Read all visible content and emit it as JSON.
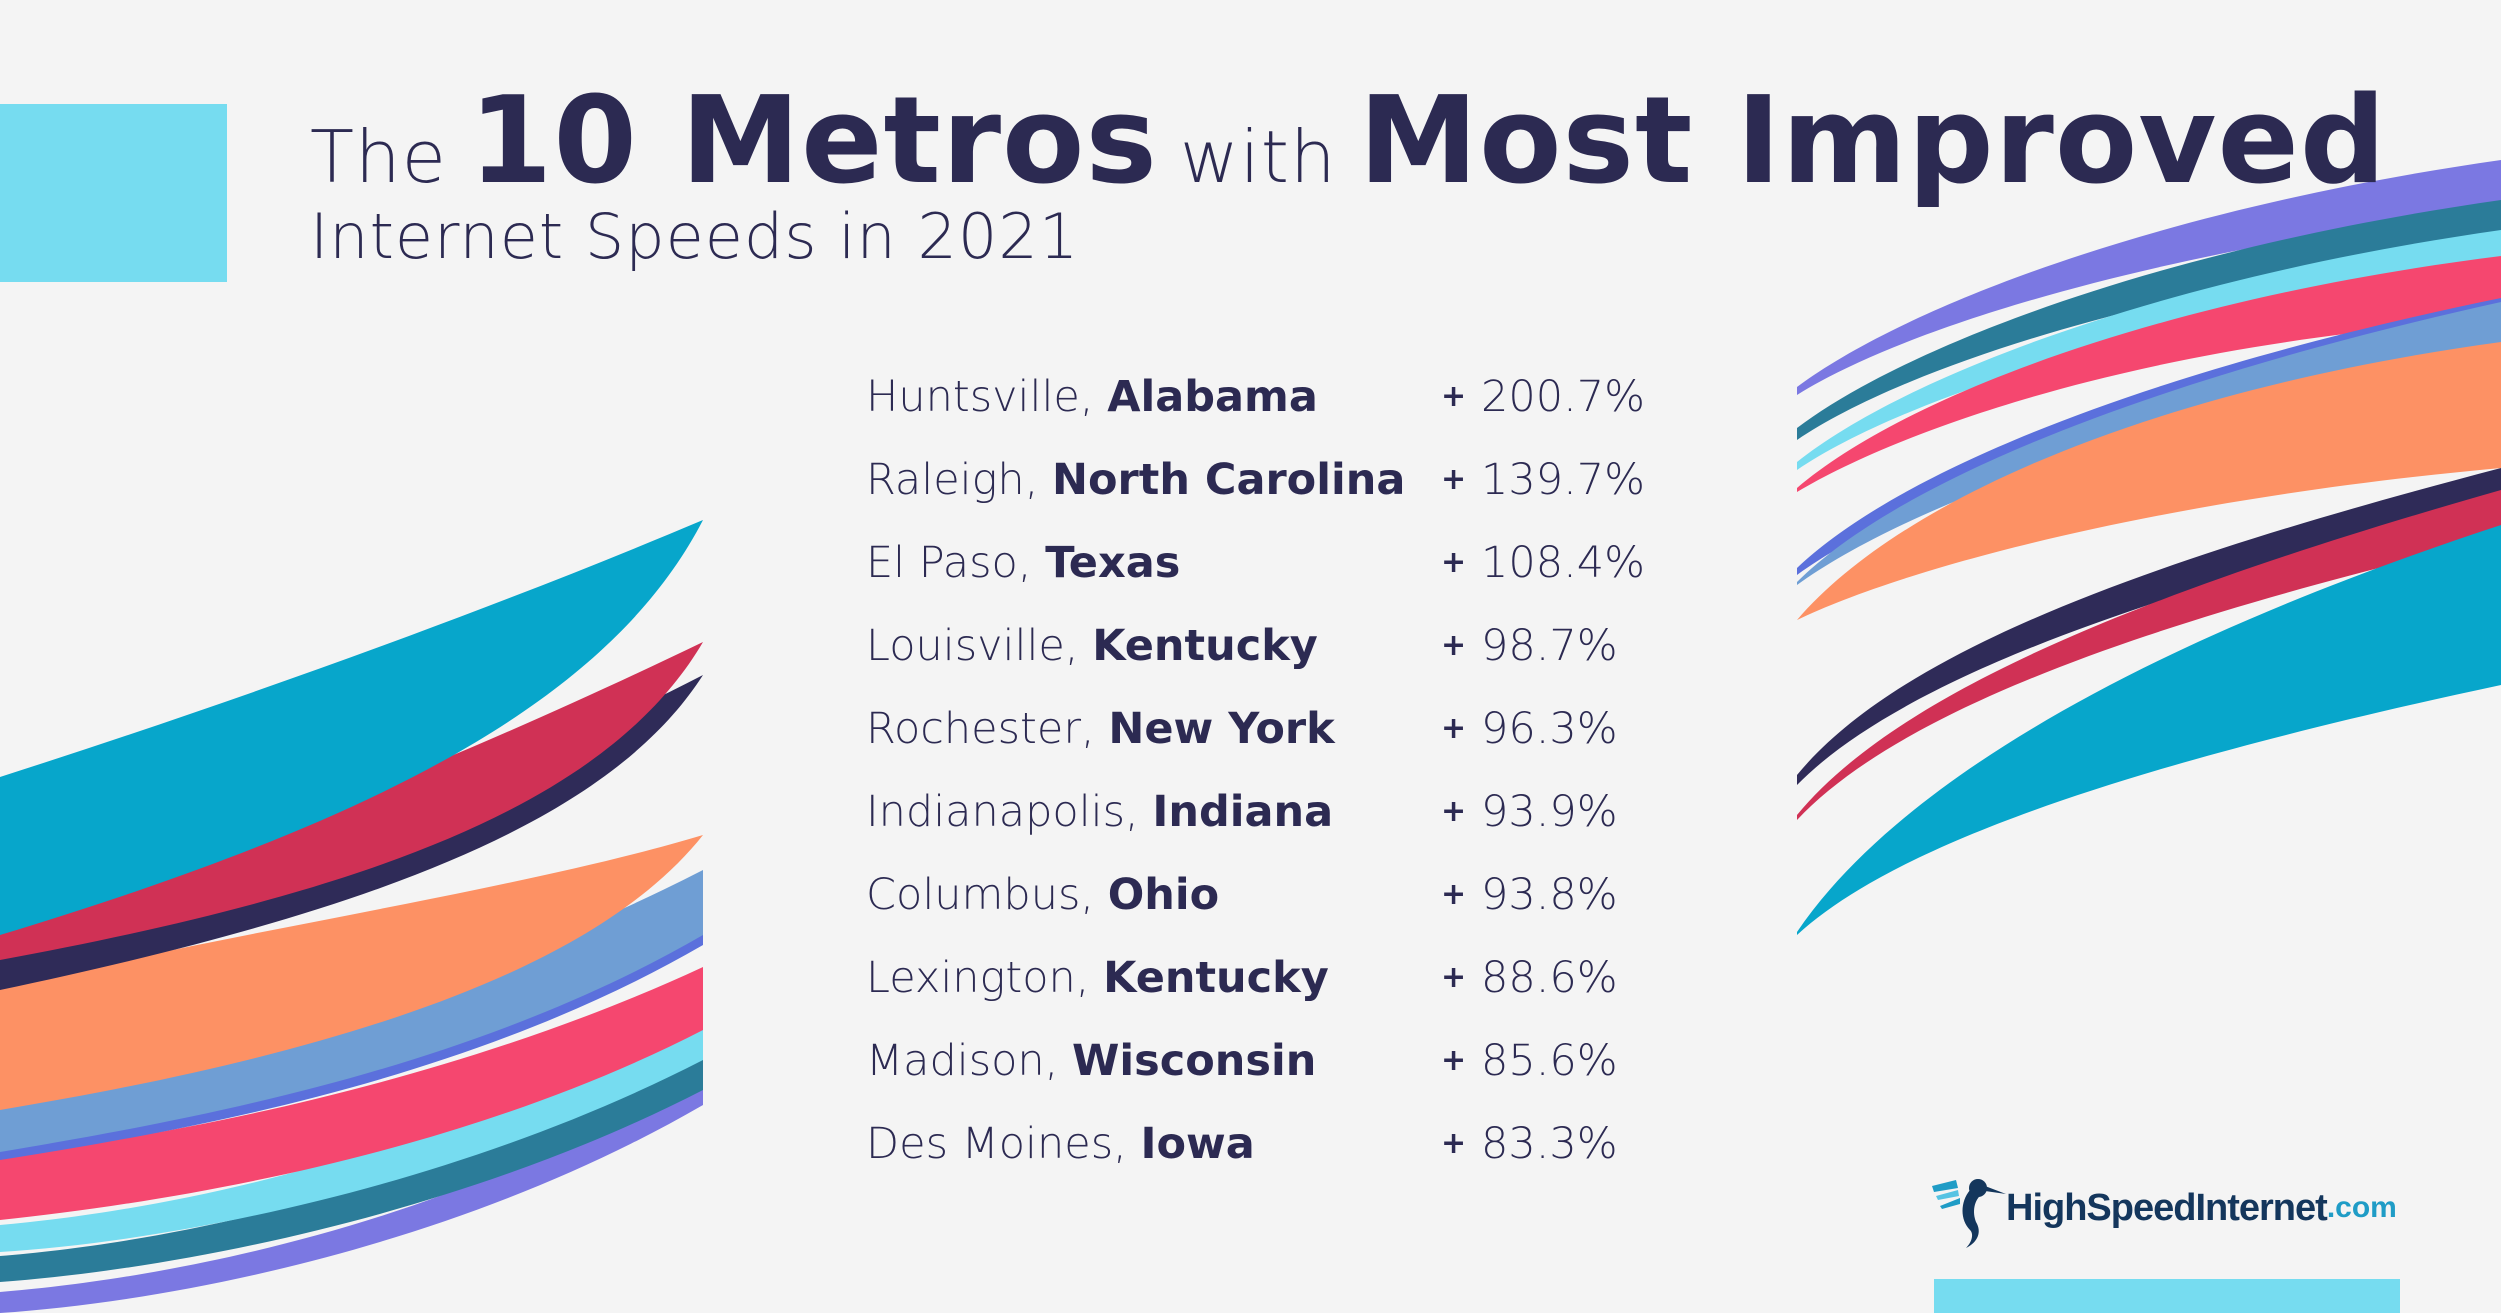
{
  "header": {
    "title_pre": "The",
    "title_bold1": "10 Metros",
    "title_mid": "with",
    "title_bold2": "Most Improved",
    "subtitle": "Internet Speeds in 2021"
  },
  "chart_data": {
    "type": "table",
    "title": "The 10 Metros with Most Improved Internet Speeds in 2021",
    "rows": [
      {
        "city": "Huntsville,",
        "state": "Alabama",
        "sign": "+",
        "change": "200.7%"
      },
      {
        "city": "Raleigh,",
        "state": "North Carolina",
        "sign": "+",
        "change": "139.7%"
      },
      {
        "city": "El Paso,",
        "state": "Texas",
        "sign": "+",
        "change": "108.4%"
      },
      {
        "city": "Louisville,",
        "state": "Kentucky",
        "sign": "+",
        "change": "98.7%"
      },
      {
        "city": "Rochester,",
        "state": "New York",
        "sign": "+",
        "change": "96.3%"
      },
      {
        "city": "Indianapolis,",
        "state": "Indiana",
        "sign": "+",
        "change": "93.9%"
      },
      {
        "city": "Columbus,",
        "state": "Ohio",
        "sign": "+",
        "change": "93.8%"
      },
      {
        "city": "Lexington,",
        "state": "Kentucky",
        "sign": "+",
        "change": "88.6%"
      },
      {
        "city": "Madison,",
        "state": "Wisconsin",
        "sign": "+",
        "change": "85.6%"
      },
      {
        "city": "Des Moines,",
        "state": "Iowa",
        "sign": "+",
        "change": "83.3%"
      }
    ]
  },
  "logo": {
    "name": "HighSpeedInternet",
    "tld": ".com",
    "icon": "hummingbird-icon"
  },
  "colors": {
    "background": "#f4f4f4",
    "text": "#2c2a52",
    "accent_cyan": "#76dcf0",
    "teal": "#07a6cb",
    "crimson": "#d03155",
    "navy": "#2f2b58",
    "orange": "#fd9164",
    "steel_blue": "#6f9ed4",
    "royal_blue": "#5b70dc",
    "pink": "#f5476f",
    "dark_teal": "#2b7c99",
    "violet": "#7b78e2"
  }
}
